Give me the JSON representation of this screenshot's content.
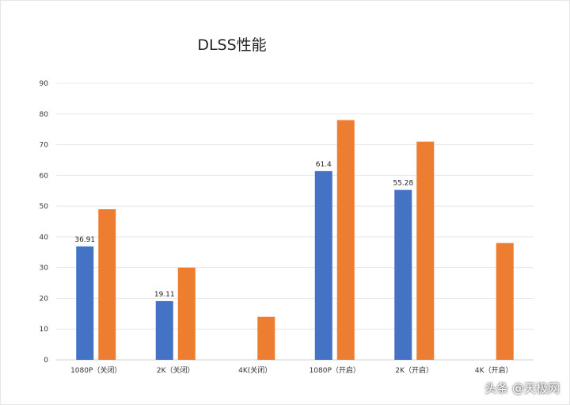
{
  "chart_data": {
    "type": "bar",
    "title": "DLSS性能",
    "categories": [
      "1080P（关闭）",
      "2K（关闭）",
      "4K(关闭）",
      "1080P（开启）",
      "2K（开启）",
      "4K（开启）"
    ],
    "series": [
      {
        "color": "#4472c4",
        "values": [
          36.91,
          19.11,
          null,
          61.4,
          55.28,
          null
        ]
      },
      {
        "color": "#ed7d31",
        "values": [
          49,
          30,
          14,
          78,
          71,
          38
        ]
      }
    ],
    "data_labels": [
      "36.91",
      "19.11",
      "",
      "61.4",
      "55.28",
      ""
    ],
    "yticks": [
      "0",
      "10",
      "20",
      "30",
      "40",
      "50",
      "60",
      "70",
      "80",
      "90"
    ],
    "ylim": [
      0,
      90
    ],
    "grid": true,
    "legend": "none"
  },
  "watermark": "头条 @天极网"
}
